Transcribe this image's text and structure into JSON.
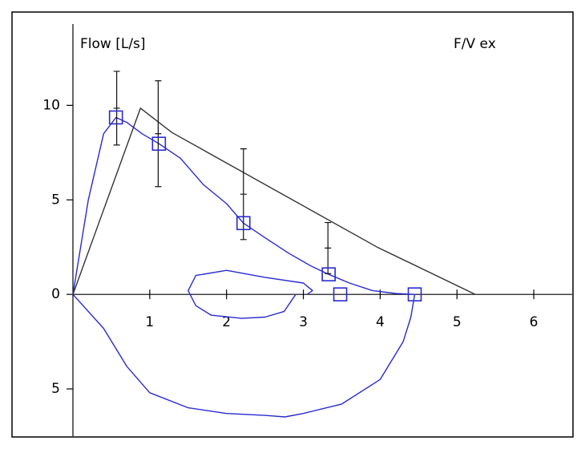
{
  "chart_data": {
    "type": "line",
    "title": "F/V ex",
    "y_label": "Flow [L/s]",
    "xlim": [
      0,
      6.5
    ],
    "ylim": [
      -7.5,
      14.3
    ],
    "xticks": [
      1,
      2,
      3,
      4,
      5,
      6
    ],
    "yticks": [
      10,
      5,
      0,
      {
        "value": -5,
        "label": "5"
      }
    ],
    "grid": false,
    "series": [
      {
        "type": "line",
        "color": "#2a2ad0",
        "x": [
          0,
          0.2,
          0.4,
          0.56,
          0.7,
          0.9,
          1.12,
          1.4,
          1.7,
          2.0,
          2.22,
          2.5,
          2.8,
          3.1,
          3.33,
          3.6,
          3.9,
          4.2,
          4.45,
          4.4,
          4.3,
          4.0,
          3.5,
          3.0,
          2.76,
          2.5,
          2.0,
          1.5,
          1.0,
          0.7,
          0.4,
          0
        ],
        "values": [
          0,
          5,
          8.5,
          9.36,
          9.1,
          8.5,
          7.97,
          7.2,
          5.8,
          4.8,
          3.77,
          3.0,
          2.2,
          1.5,
          1.06,
          0.6,
          0.2,
          0.05,
          0,
          -1.2,
          -2.5,
          -4.5,
          -5.8,
          -6.3,
          -6.48,
          -6.4,
          -6.3,
          -6.0,
          -5.2,
          -3.8,
          -1.8,
          0
        ]
      },
      {
        "type": "line",
        "color": "#2a2ad0",
        "x": [
          2.9,
          2.75,
          2.5,
          2.2,
          1.8,
          1.6,
          1.5,
          1.6,
          2.0,
          2.5,
          3.0,
          3.12,
          3.05
        ],
        "values": [
          0,
          -0.9,
          -1.2,
          -1.27,
          -1.1,
          -0.6,
          0.2,
          1.0,
          1.27,
          0.9,
          0.6,
          0.2,
          0
        ]
      },
      {
        "type": "line",
        "color": "#333333",
        "x": [
          0,
          0.88,
          1.29,
          3.96,
          5.24
        ],
        "values": [
          0,
          9.85,
          8.56,
          2.5,
          0
        ]
      },
      {
        "type": "errorbar",
        "color": "#111111",
        "x": [
          0.57,
          1.11,
          2.22,
          3.32
        ],
        "values": [
          9.85,
          8.5,
          5.3,
          2.45
        ],
        "errors": [
          1.95,
          2.8,
          2.4,
          1.35
        ]
      },
      {
        "type": "square",
        "color": "#2a2ad0",
        "x": [
          0.56,
          1.12,
          2.22,
          3.33,
          3.48,
          4.45
        ],
        "values": [
          9.36,
          7.97,
          3.77,
          1.06,
          0,
          0
        ]
      }
    ]
  }
}
